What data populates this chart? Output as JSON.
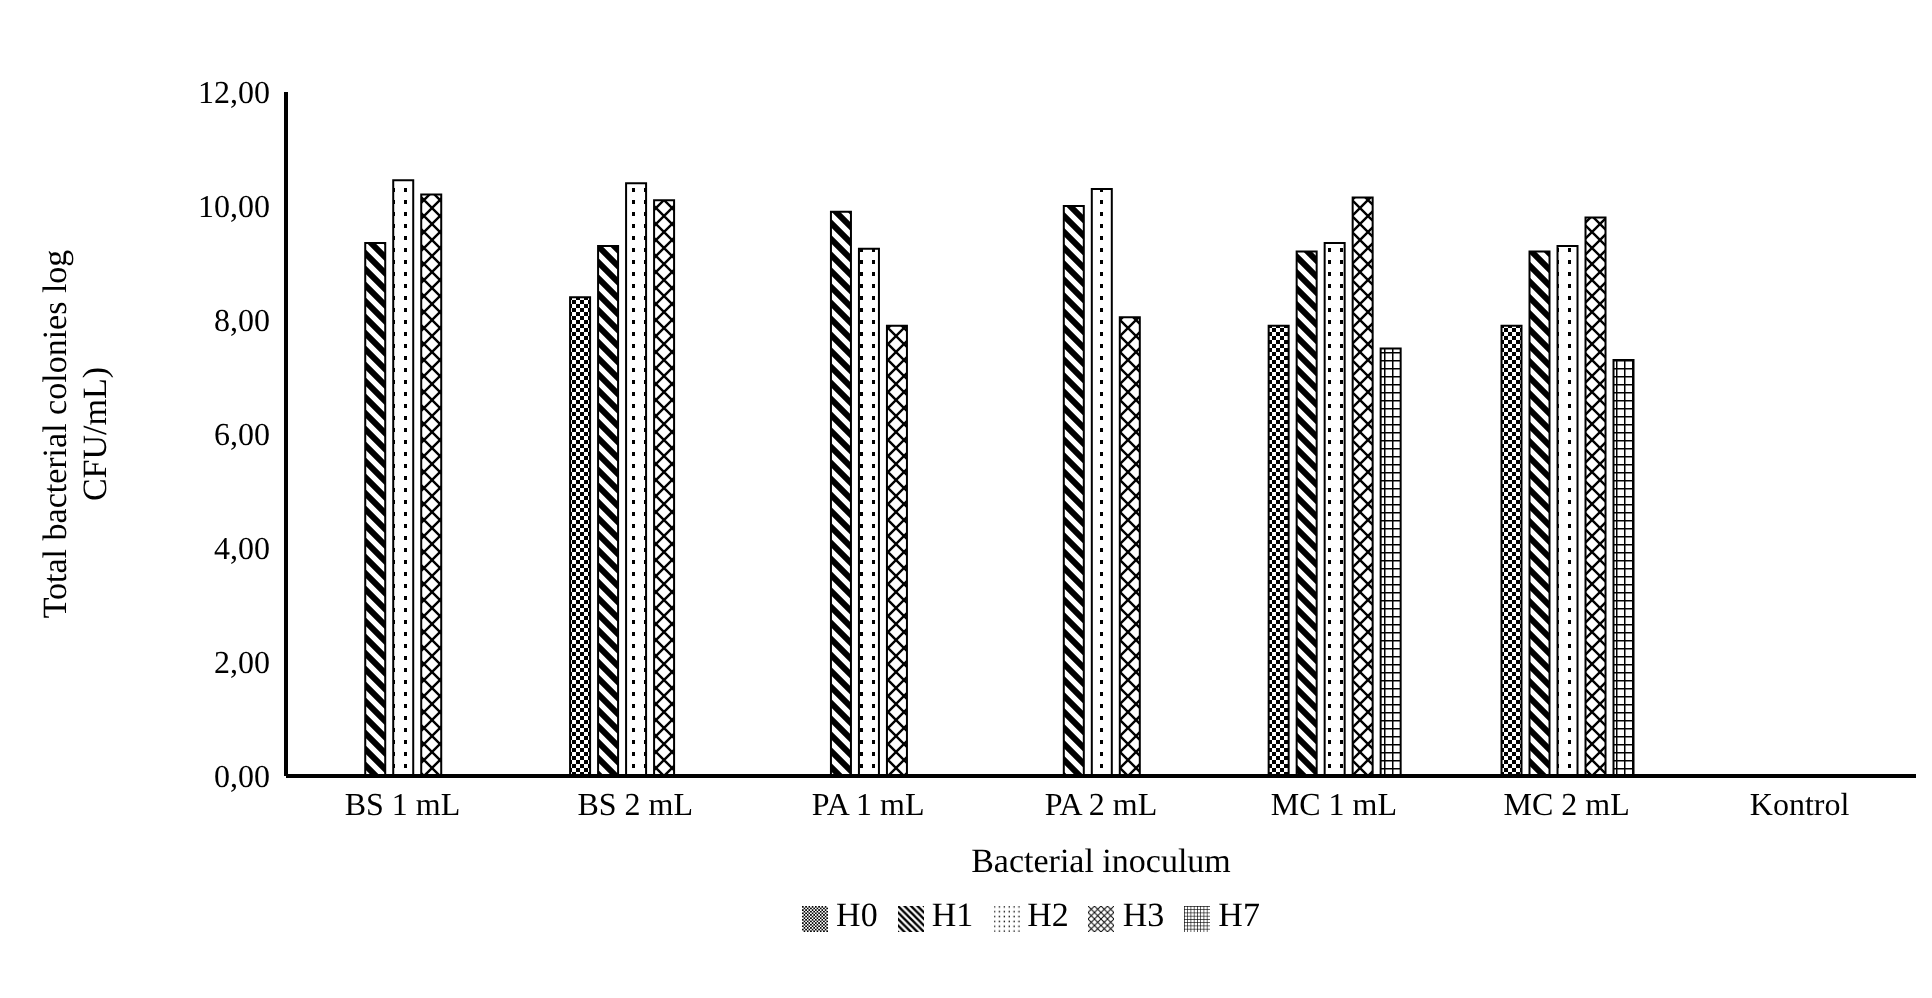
{
  "chart_data": {
    "type": "bar",
    "xlabel": "Bacterial inoculum",
    "ylabel": "Total bacterial colonies log CFU/mL)",
    "categories": [
      "BS 1 mL",
      "BS 2 mL",
      "PA 1 mL",
      "PA 2 mL",
      "MC 1 mL",
      "MC 2 mL",
      "Kontrol"
    ],
    "series": [
      {
        "name": "H0",
        "color": "#000000",
        "values": [
          null,
          8.4,
          null,
          null,
          7.9,
          7.9,
          null
        ]
      },
      {
        "name": "H1",
        "color": "#000000",
        "values": [
          9.35,
          9.3,
          9.9,
          10.0,
          9.2,
          9.2,
          null
        ]
      },
      {
        "name": "H2",
        "color": "#000000",
        "values": [
          10.45,
          10.4,
          9.25,
          10.3,
          9.35,
          9.3,
          null
        ]
      },
      {
        "name": "H3",
        "color": "#000000",
        "values": [
          10.2,
          10.1,
          7.9,
          8.05,
          10.15,
          9.8,
          null
        ]
      },
      {
        "name": "H7",
        "color": "#000000",
        "values": [
          null,
          null,
          null,
          null,
          7.5,
          7.3,
          null
        ]
      }
    ],
    "ylim": [
      0,
      12
    ],
    "yticks": [
      {
        "value": 0,
        "label": "0,00"
      },
      {
        "value": 2,
        "label": "2,00"
      },
      {
        "value": 4,
        "label": "4,00"
      },
      {
        "value": 6,
        "label": "6,00"
      },
      {
        "value": 8,
        "label": "8,00"
      },
      {
        "value": 10,
        "label": "10,00"
      },
      {
        "value": 12,
        "label": "12,00"
      }
    ],
    "grid": false,
    "legend": "bottom"
  }
}
